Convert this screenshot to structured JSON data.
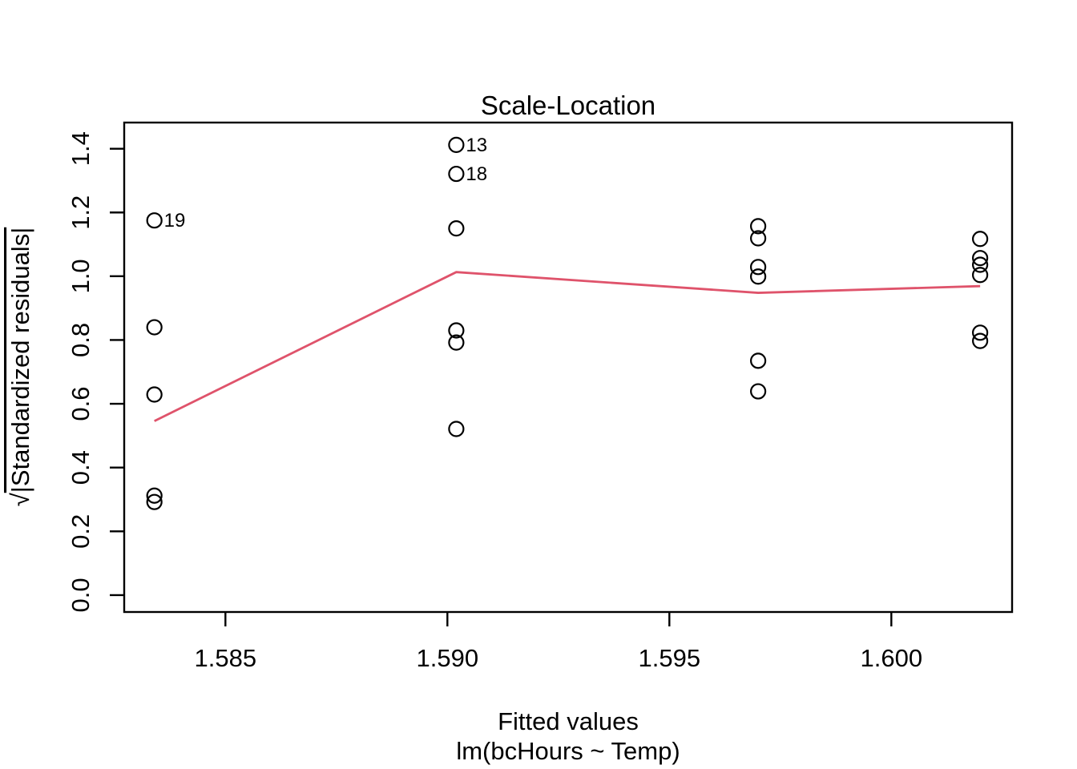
{
  "chart_data": {
    "type": "scatter",
    "title": "Scale-Location",
    "xlabel": "Fitted values",
    "xlabel_sub": "lm(bcHours ~ Temp)",
    "ylabel": "√|Standardized residuals|",
    "ylabel_radical": "√",
    "ylabel_body": "|Standardized residuals|",
    "xlim": [
      1.58272,
      1.60272
    ],
    "ylim": [
      -0.053,
      1.482
    ],
    "x_ticks": [
      1.585,
      1.59,
      1.595,
      1.6
    ],
    "x_tick_labels": [
      "1.585",
      "1.590",
      "1.595",
      "1.600"
    ],
    "y_ticks": [
      0.0,
      0.2,
      0.4,
      0.6,
      0.8,
      1.0,
      1.2,
      1.4
    ],
    "y_tick_labels": [
      "0.0",
      "0.2",
      "0.4",
      "0.6",
      "0.8",
      "1.0",
      "1.2",
      "1.4"
    ],
    "grid": "off",
    "legend": "none",
    "point_color": "#000000",
    "line_color": "#DF536B",
    "points": [
      {
        "x": 1.5834,
        "y": 1.175,
        "label": "19"
      },
      {
        "x": 1.5834,
        "y": 0.84
      },
      {
        "x": 1.5834,
        "y": 0.629
      },
      {
        "x": 1.5834,
        "y": 0.312
      },
      {
        "x": 1.5834,
        "y": 0.292
      },
      {
        "x": 1.5902,
        "y": 1.412,
        "label": "13"
      },
      {
        "x": 1.5902,
        "y": 1.321,
        "label": "18"
      },
      {
        "x": 1.5902,
        "y": 1.15
      },
      {
        "x": 1.5902,
        "y": 0.83
      },
      {
        "x": 1.5902,
        "y": 0.792
      },
      {
        "x": 1.5902,
        "y": 0.521
      },
      {
        "x": 1.597,
        "y": 1.157
      },
      {
        "x": 1.597,
        "y": 1.119
      },
      {
        "x": 1.597,
        "y": 1.029
      },
      {
        "x": 1.597,
        "y": 0.999
      },
      {
        "x": 1.597,
        "y": 0.735
      },
      {
        "x": 1.597,
        "y": 0.639
      },
      {
        "x": 1.602,
        "y": 1.117
      },
      {
        "x": 1.602,
        "y": 1.057
      },
      {
        "x": 1.602,
        "y": 1.036
      },
      {
        "x": 1.602,
        "y": 1.004
      },
      {
        "x": 1.602,
        "y": 0.823
      },
      {
        "x": 1.602,
        "y": 0.797
      }
    ],
    "smooth_line": [
      {
        "x": 1.5834,
        "y": 0.546
      },
      {
        "x": 1.5902,
        "y": 1.013
      },
      {
        "x": 1.597,
        "y": 0.948
      },
      {
        "x": 1.602,
        "y": 0.969
      }
    ]
  }
}
